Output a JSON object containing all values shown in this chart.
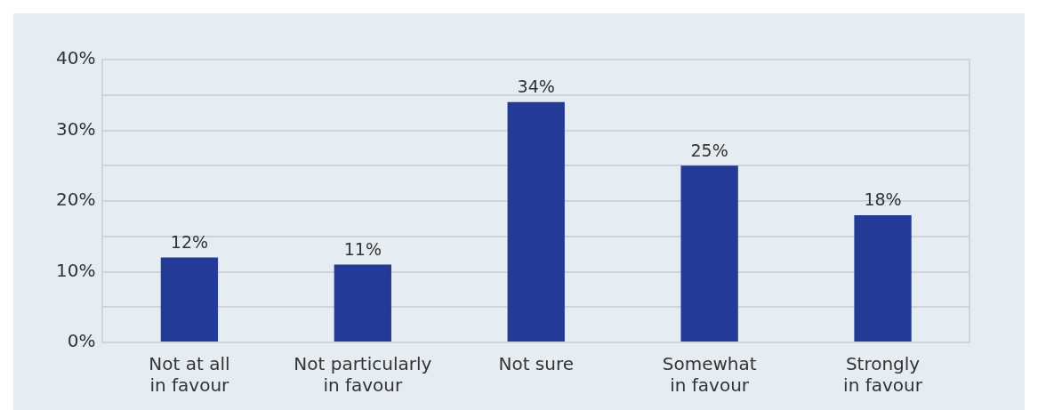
{
  "chart_data": {
    "type": "bar",
    "categories": [
      "Not at all\nin favour",
      "Not particularly\nin favour",
      "Not sure",
      "Somewhat\nin favour",
      "Strongly\nin favour"
    ],
    "values": [
      12,
      11,
      34,
      25,
      18
    ],
    "color": "#233b96",
    "value_labels": [
      "12%",
      "11%",
      "34%",
      "25%",
      "18%"
    ],
    "ylim": [
      0,
      40
    ],
    "yticks": [
      {
        "value": 0,
        "label": "0%"
      },
      {
        "value": 5,
        "label": null
      },
      {
        "value": 10,
        "label": "10%"
      },
      {
        "value": 15,
        "label": null
      },
      {
        "value": 20,
        "label": "20%"
      },
      {
        "value": 25,
        "label": null
      },
      {
        "value": 30,
        "label": "30%"
      },
      {
        "value": 35,
        "label": null
      },
      {
        "value": 40,
        "label": "40%"
      }
    ],
    "grid": "y"
  }
}
